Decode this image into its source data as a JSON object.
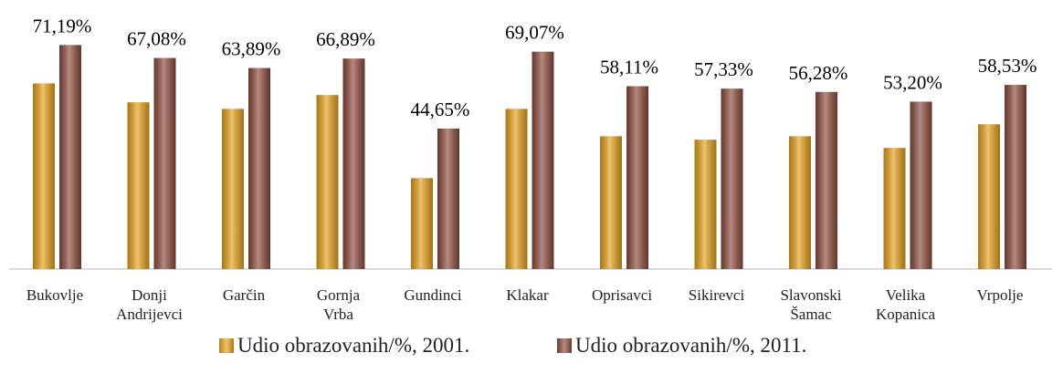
{
  "chart_data": {
    "type": "bar",
    "categories": [
      "Bukovlje",
      "Donji Andrijevci",
      "Garčin",
      "Gornja Vrba",
      "Gundinci",
      "Klakar",
      "Oprisavci",
      "Sikirevci",
      "Slavonski Šamac",
      "Velika Kopanica",
      "Vrpolje"
    ],
    "series": [
      {
        "name": "Udio obrazovanih/%, 2001.",
        "color": "#e8a21a",
        "values": [
          59.0,
          53.0,
          50.9,
          55.3,
          28.9,
          50.9,
          42.2,
          41.1,
          42.2,
          38.5,
          46.0
        ]
      },
      {
        "name": "Udio obrazovanih/%, 2011.",
        "color": "#8e4b3d",
        "values": [
          71.19,
          67.08,
          63.89,
          66.89,
          44.65,
          69.07,
          58.11,
          57.33,
          56.28,
          53.2,
          58.53
        ],
        "value_labels": [
          "71,19%",
          "67,08%",
          "63,89%",
          "66,89%",
          "44,65%",
          "69,07%",
          "58,11%",
          "57,33%",
          "56,28%",
          "53,20%",
          "58,53%"
        ]
      }
    ],
    "ylim": [
      0,
      80
    ],
    "legend": "bottom"
  }
}
